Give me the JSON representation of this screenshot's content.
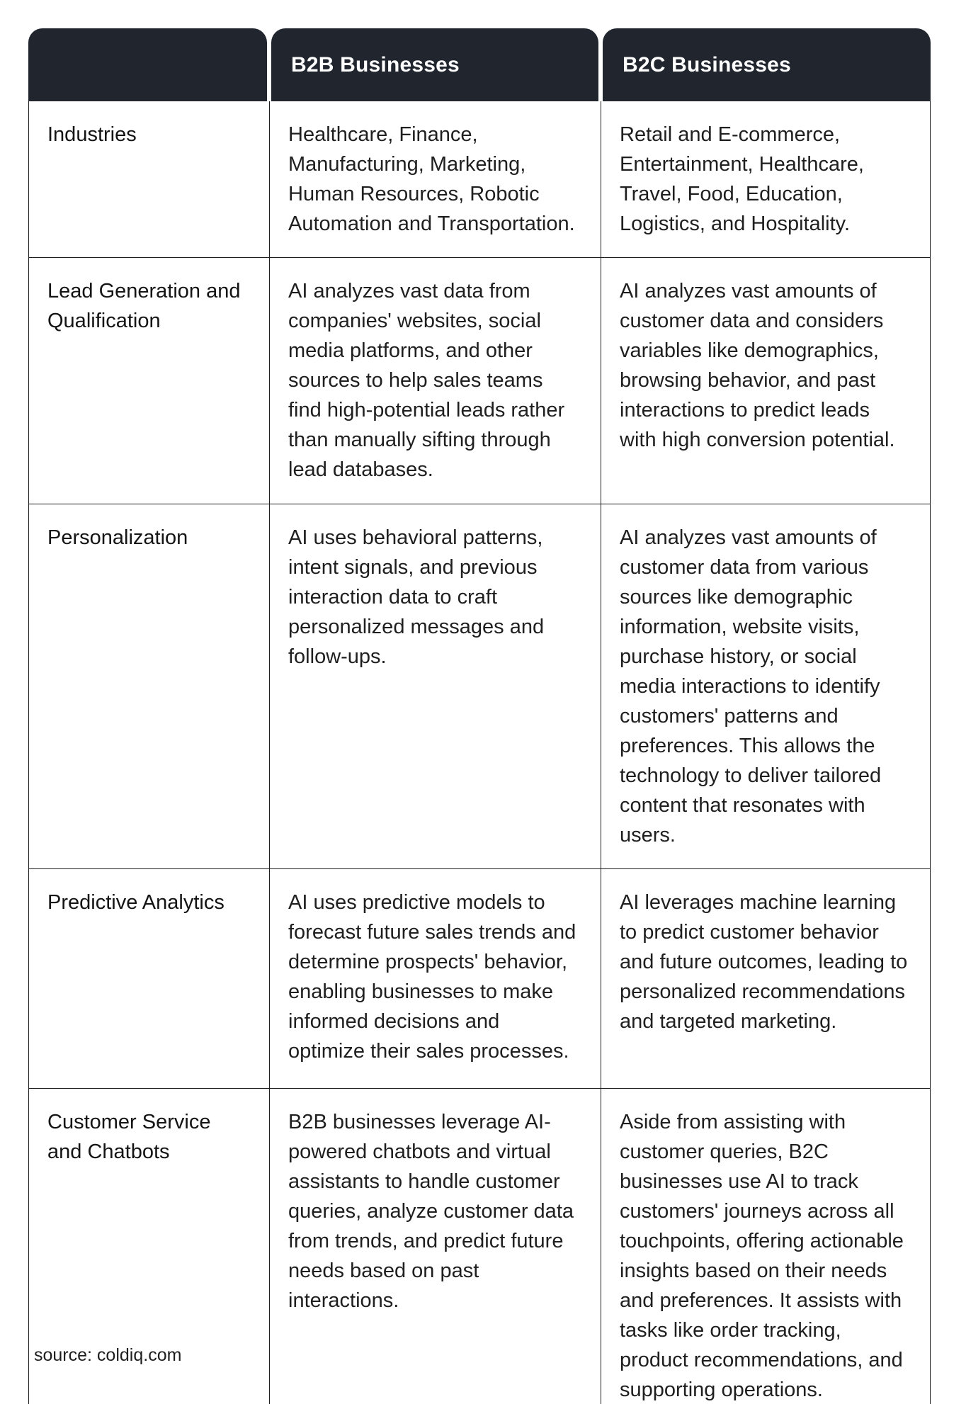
{
  "table": {
    "header": {
      "empty": "",
      "b2b": "B2B Businesses",
      "b2c": "B2C Businesses"
    },
    "rows": [
      {
        "label": "Industries",
        "b2b": "Healthcare, Finance, Manufacturing, Marketing, Human Resources, Robotic Automation and Transportation.",
        "b2c": "Retail and E-commerce, Entertainment, Healthcare, Travel, Food, Education, Logistics, and Hospitality."
      },
      {
        "label": "Lead Generation and Qualification",
        "b2b": "AI analyzes vast data from companies' websites, social media platforms, and other sources to help sales teams find high-potential leads rather than manually sifting through lead databases.",
        "b2c": "AI analyzes vast amounts of customer data and considers variables like demographics, browsing behavior, and past interactions to predict leads with high conversion potential."
      },
      {
        "label": "Personalization",
        "b2b": "AI uses behavioral patterns, intent signals, and previous interaction data to craft personalized messages and follow-ups.",
        "b2c": "AI analyzes vast amounts of customer data from various sources like demographic information, website visits, purchase history, or social media interactions to identify customers' patterns and preferences. This allows the technology to deliver tailored content that resonates with users."
      },
      {
        "label": "Predictive Analytics",
        "b2b": "AI uses predictive models to forecast future sales trends and determine prospects' behavior, enabling businesses to make informed decisions and optimize their sales processes.",
        "b2c": "AI leverages machine learning to predict customer behavior and future outcomes, leading to personalized recommendations and targeted marketing."
      },
      {
        "label": "Customer Service and Chatbots",
        "b2b": "B2B businesses leverage AI-powered chatbots and virtual assistants to handle customer queries, analyze customer data from trends, and predict future needs based on past interactions.",
        "b2c": "Aside from assisting with customer queries, B2C businesses use AI to track customers' journeys across all touchpoints, offering actionable insights based on their needs and preferences. It assists with tasks like order tracking, product recommendations, and supporting operations."
      }
    ]
  },
  "footer": {
    "source": "source: coldiq.com"
  },
  "colors": {
    "header_bg": "#20252e",
    "header_text": "#ffffff",
    "body_text": "#1f1f1f",
    "border": "#1d1d1d",
    "page_bg": "#ffffff"
  }
}
